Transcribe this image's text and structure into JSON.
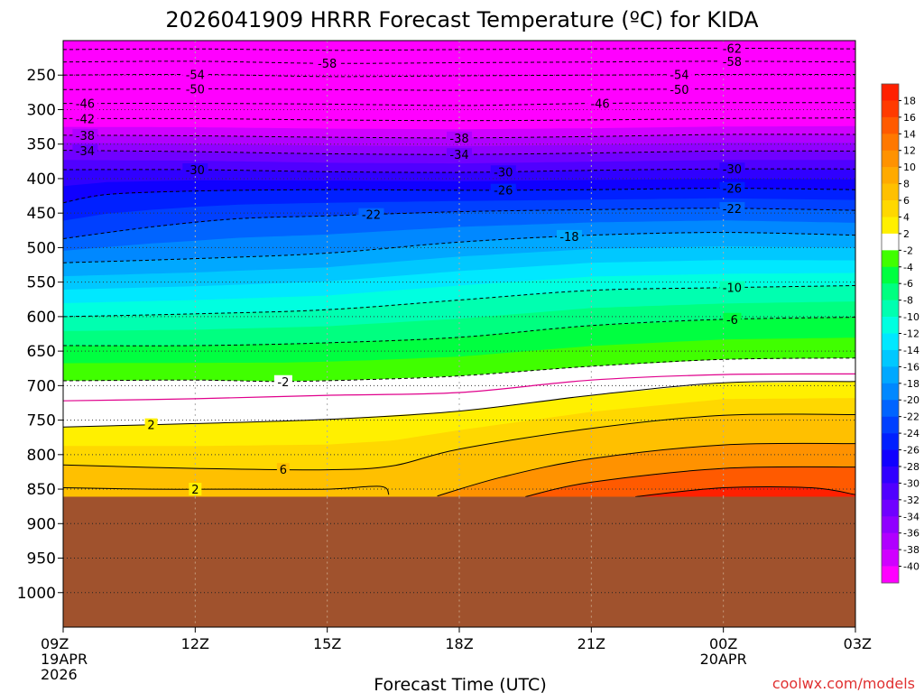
{
  "chart_data": {
    "type": "heatmap",
    "title": "2026041909 HRRR Forecast Temperature (ºC) for KIDA",
    "xlabel": "Forecast Time (UTC)",
    "ylabel": "",
    "credit": "coolwx.com/models",
    "x_ticks": [
      {
        "label": "09Z",
        "hour": 0,
        "sub": [
          "19APR",
          "2026"
        ]
      },
      {
        "label": "12Z",
        "hour": 3,
        "sub": []
      },
      {
        "label": "15Z",
        "hour": 6,
        "sub": []
      },
      {
        "label": "18Z",
        "hour": 9,
        "sub": []
      },
      {
        "label": "21Z",
        "hour": 12,
        "sub": []
      },
      {
        "label": "00Z",
        "hour": 15,
        "sub": [
          "20APR"
        ]
      },
      {
        "label": "03Z",
        "hour": 18,
        "sub": []
      }
    ],
    "xlim": [
      0,
      18
    ],
    "y_ticks": [
      250,
      300,
      350,
      400,
      450,
      500,
      550,
      600,
      650,
      700,
      750,
      800,
      850,
      900,
      950,
      1000
    ],
    "ylim_hpa": [
      200,
      1050
    ],
    "ground_pressure_hpa": 861,
    "colorbar": {
      "label_levels": [
        18,
        16,
        14,
        12,
        10,
        8,
        6,
        4,
        2,
        -2,
        -4,
        -6,
        -8,
        -10,
        -12,
        -14,
        -16,
        -18,
        -20,
        -22,
        -24,
        -26,
        -28,
        -30,
        -32,
        -34,
        -36,
        -38,
        -40
      ],
      "label_strings": [
        "18",
        "16",
        "14",
        "12",
        "10",
        "8",
        "6",
        "4",
        "2",
        "-2",
        "-4",
        "-6",
        "-8",
        "-10",
        "-12",
        "-14",
        "-16",
        "-18",
        "-20",
        "-22",
        "-24",
        "-26",
        "-28",
        "-30",
        "-32",
        "-34",
        "-36",
        "-38",
        "-40"
      ],
      "bands": [
        {
          "range": "> 18",
          "color": "#ff2000"
        },
        {
          "range": "16 to 18",
          "color": "#ff3a00"
        },
        {
          "range": "14 to 16",
          "color": "#ff5a00"
        },
        {
          "range": "12 to 14",
          "color": "#ff7800"
        },
        {
          "range": "10 to 12",
          "color": "#ff9200"
        },
        {
          "range": "8 to 10",
          "color": "#ffaa00"
        },
        {
          "range": "6 to 8",
          "color": "#ffc000"
        },
        {
          "range": "4 to 6",
          "color": "#ffd800"
        },
        {
          "range": "2 to 4",
          "color": "#fff000"
        },
        {
          "range": "-2 to 2",
          "color": "#ffffff"
        },
        {
          "range": "-4 to -2",
          "color": "#40ff00"
        },
        {
          "range": "-6 to -4",
          "color": "#00ff40"
        },
        {
          "range": "-8 to -6",
          "color": "#00ff80"
        },
        {
          "range": "-10 to -8",
          "color": "#00ffb0"
        },
        {
          "range": "-12 to -10",
          "color": "#00ffe0"
        },
        {
          "range": "-14 to -12",
          "color": "#00e8ff"
        },
        {
          "range": "-16 to -14",
          "color": "#00c8ff"
        },
        {
          "range": "-18 to -16",
          "color": "#00a8ff"
        },
        {
          "range": "-20 to -18",
          "color": "#0088ff"
        },
        {
          "range": "-22 to -20",
          "color": "#0064ff"
        },
        {
          "range": "-24 to -22",
          "color": "#0040ff"
        },
        {
          "range": "-26 to -24",
          "color": "#0020ff"
        },
        {
          "range": "-28 to -26",
          "color": "#1000ff"
        },
        {
          "range": "-30 to -28",
          "color": "#3000ff"
        },
        {
          "range": "-32 to -30",
          "color": "#5000ff"
        },
        {
          "range": "-34 to -32",
          "color": "#7000ff"
        },
        {
          "range": "-36 to -34",
          "color": "#9000ff"
        },
        {
          "range": "-38 to -36",
          "color": "#b000ff"
        },
        {
          "range": "-40 to -38",
          "color": "#d000ff"
        },
        {
          "range": "< -40",
          "color": "#ff00ff"
        }
      ]
    },
    "ground_color": "#a0522d",
    "isotherms": [
      {
        "value": -62,
        "label": "-62",
        "label_hour": 15.2,
        "pressure": [
          [
            0,
            213
          ],
          [
            3,
            212
          ],
          [
            6,
            214
          ],
          [
            9,
            213
          ],
          [
            12,
            212
          ],
          [
            15,
            211
          ],
          [
            18,
            212
          ]
        ]
      },
      {
        "value": -58,
        "label": "-58",
        "label_hour": 6.0,
        "pressure": [
          [
            0,
            231
          ],
          [
            3,
            230
          ],
          [
            6,
            233
          ],
          [
            9,
            232
          ],
          [
            12,
            231
          ],
          [
            15,
            230
          ],
          [
            18,
            231
          ]
        ]
      },
      {
        "value": -58,
        "label": "-58",
        "label_hour": 15.2,
        "pressure": []
      },
      {
        "value": -54,
        "label": "-54",
        "label_hour": 3.0,
        "pressure": [
          [
            0,
            250
          ],
          [
            3,
            249
          ],
          [
            6,
            252
          ],
          [
            9,
            251
          ],
          [
            12,
            250
          ],
          [
            15,
            249
          ],
          [
            18,
            249
          ]
        ]
      },
      {
        "value": -54,
        "label": "-54",
        "label_hour": 14.0,
        "pressure": []
      },
      {
        "value": -50,
        "label": "-50",
        "label_hour": 3.0,
        "pressure": [
          [
            0,
            271
          ],
          [
            3,
            270
          ],
          [
            6,
            271
          ],
          [
            9,
            272
          ],
          [
            12,
            271
          ],
          [
            15,
            270
          ],
          [
            18,
            269
          ]
        ]
      },
      {
        "value": -50,
        "label": "-50",
        "label_hour": 14.0,
        "pressure": []
      },
      {
        "value": -46,
        "label": "-46",
        "label_hour": 0.5,
        "pressure": [
          [
            0,
            291
          ],
          [
            3,
            291
          ],
          [
            6,
            292
          ],
          [
            9,
            294
          ],
          [
            12,
            291
          ],
          [
            15,
            290
          ],
          [
            18,
            290
          ]
        ]
      },
      {
        "value": -46,
        "label": "-46",
        "label_hour": 12.2,
        "pressure": []
      },
      {
        "value": -42,
        "label": "-42",
        "label_hour": 0.5,
        "pressure": [
          [
            0,
            313
          ],
          [
            3,
            313
          ],
          [
            6,
            315
          ],
          [
            9,
            316
          ],
          [
            12,
            315
          ],
          [
            15,
            313
          ],
          [
            18,
            312
          ]
        ]
      },
      {
        "value": -38,
        "label": "-38",
        "label_hour": 0.5,
        "pressure": [
          [
            0,
            337
          ],
          [
            3,
            338
          ],
          [
            6,
            340
          ],
          [
            9,
            341
          ],
          [
            12,
            339
          ],
          [
            15,
            336
          ],
          [
            18,
            336
          ]
        ]
      },
      {
        "value": -38,
        "label": "-38",
        "label_hour": 9.0,
        "pressure": []
      },
      {
        "value": -34,
        "label": "-34",
        "label_hour": 0.5,
        "pressure": [
          [
            0,
            359
          ],
          [
            3,
            361
          ],
          [
            6,
            364
          ],
          [
            9,
            365
          ],
          [
            12,
            363
          ],
          [
            15,
            360
          ],
          [
            18,
            360
          ]
        ]
      },
      {
        "value": -34,
        "label": "-34",
        "label_hour": 9.0,
        "pressure": []
      },
      {
        "value": -30,
        "label": "-30",
        "label_hour": 3.0,
        "pressure": [
          [
            0,
            387
          ],
          [
            3,
            387
          ],
          [
            6,
            390
          ],
          [
            9,
            391
          ],
          [
            12,
            388
          ],
          [
            15,
            386
          ],
          [
            18,
            386
          ]
        ]
      },
      {
        "value": -30,
        "label": "-30",
        "label_hour": 10.0,
        "pressure": []
      },
      {
        "value": -30,
        "label": "-30",
        "label_hour": 15.2,
        "pressure": []
      },
      {
        "value": -26,
        "label": "-26",
        "label_hour": 10.0,
        "pressure": [
          [
            0,
            435
          ],
          [
            1,
            423
          ],
          [
            3,
            418
          ],
          [
            6,
            416
          ],
          [
            9,
            417
          ],
          [
            12,
            416
          ],
          [
            15,
            414
          ],
          [
            18,
            416
          ]
        ]
      },
      {
        "value": -26,
        "label": "-26",
        "label_hour": 15.2,
        "pressure": []
      },
      {
        "value": -22,
        "label": "-22",
        "label_hour": 7.0,
        "pressure": [
          [
            0,
            487
          ],
          [
            2,
            470
          ],
          [
            4,
            458
          ],
          [
            6,
            454
          ],
          [
            9,
            448
          ],
          [
            12,
            445
          ],
          [
            15,
            443
          ],
          [
            18,
            446
          ]
        ]
      },
      {
        "value": -22,
        "label": "-22",
        "label_hour": 15.2,
        "pressure": []
      },
      {
        "value": -18,
        "label": "-18",
        "label_hour": 11.5,
        "pressure": [
          [
            0,
            522
          ],
          [
            3,
            516
          ],
          [
            6,
            508
          ],
          [
            9,
            492
          ],
          [
            12,
            482
          ],
          [
            15,
            478
          ],
          [
            18,
            482
          ]
        ]
      },
      {
        "value": -10,
        "label": "-10",
        "label_hour": 15.2,
        "pressure": [
          [
            0,
            600
          ],
          [
            3,
            596
          ],
          [
            6,
            590
          ],
          [
            9,
            576
          ],
          [
            12,
            562
          ],
          [
            15,
            558
          ],
          [
            18,
            555
          ]
        ]
      },
      {
        "value": -6,
        "label": "-6",
        "label_hour": 15.2,
        "pressure": [
          [
            0,
            642
          ],
          [
            3,
            642
          ],
          [
            6,
            638
          ],
          [
            9,
            630
          ],
          [
            12,
            613
          ],
          [
            15,
            604
          ],
          [
            18,
            601
          ]
        ]
      },
      {
        "value": -2,
        "label": "-2",
        "label_hour": 5.0,
        "pressure": [
          [
            0,
            693
          ],
          [
            3,
            692
          ],
          [
            5,
            694
          ],
          [
            7,
            691
          ],
          [
            9,
            686
          ],
          [
            12,
            672
          ],
          [
            15,
            662
          ],
          [
            18,
            660
          ]
        ]
      }
    ],
    "freezing_line": {
      "value": 0,
      "pressure": [
        [
          0,
          722
        ],
        [
          3,
          719
        ],
        [
          6,
          714
        ],
        [
          9,
          710
        ],
        [
          12,
          692
        ],
        [
          15,
          684
        ],
        [
          18,
          683
        ]
      ]
    },
    "warm_isotherms": [
      {
        "value": 2,
        "label": "2",
        "label_hour": 2.0,
        "pressure": [
          [
            0,
            760
          ],
          [
            3,
            755
          ],
          [
            6,
            749
          ],
          [
            9,
            737
          ],
          [
            12,
            714
          ],
          [
            15,
            696
          ],
          [
            18,
            694
          ]
        ]
      },
      {
        "value": 6,
        "label": "6",
        "label_hour": 5.0,
        "pressure": [
          [
            0,
            815
          ],
          [
            3,
            820
          ],
          [
            6,
            822
          ],
          [
            7.5,
            816
          ],
          [
            9,
            792
          ],
          [
            12,
            762
          ],
          [
            15,
            743
          ],
          [
            18,
            742
          ]
        ]
      },
      {
        "value": 2,
        "label": "2",
        "label_hour": 3.0,
        "pressure": [
          [
            0,
            848
          ],
          [
            2,
            850
          ],
          [
            4,
            850
          ],
          [
            6,
            850
          ],
          [
            7.2,
            846
          ],
          [
            7.4,
            858
          ]
        ]
      },
      {
        "value": 10,
        "label": "",
        "label_hour": null,
        "pressure": [
          [
            8.5,
            860
          ],
          [
            10,
            832
          ],
          [
            12,
            806
          ],
          [
            15,
            786
          ],
          [
            18,
            784
          ]
        ]
      },
      {
        "value": 14,
        "label": "",
        "label_hour": null,
        "pressure": [
          [
            10.5,
            861
          ],
          [
            12,
            840
          ],
          [
            15,
            820
          ],
          [
            18,
            818
          ]
        ]
      },
      {
        "value": 18,
        "label": "",
        "label_hour": null,
        "pressure": [
          [
            13,
            861
          ],
          [
            15,
            848
          ],
          [
            17,
            848
          ],
          [
            18,
            858
          ]
        ]
      }
    ]
  }
}
